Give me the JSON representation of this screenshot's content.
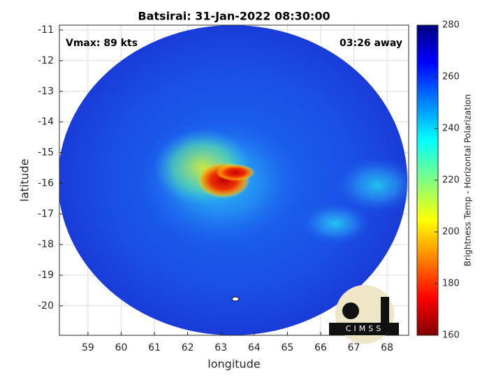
{
  "chart_data": {
    "type": "image",
    "title": "Batsirai: 31-Jan-2022 08:30:00",
    "xlabel": "longitude",
    "ylabel": "latitude",
    "annotations": {
      "left": "Vmax: 89 kts",
      "right": "03:26 away"
    },
    "logo": "CIMSS",
    "xlim": [
      58.14,
      68.65
    ],
    "xticks": [
      59,
      60,
      61,
      62,
      63,
      64,
      65,
      66,
      67,
      68
    ],
    "ylim": [
      -20.96,
      -10.84
    ],
    "yticks": [
      -20,
      -19,
      -18,
      -17,
      -16,
      -15,
      -14,
      -13,
      -12,
      -11
    ],
    "grid": true,
    "colorbar": {
      "label": "Brightness Temp - Horizontal Polarization",
      "lim": [
        160,
        280
      ],
      "ticks": [
        160,
        180,
        200,
        220,
        240,
        260,
        280
      ]
    }
  }
}
